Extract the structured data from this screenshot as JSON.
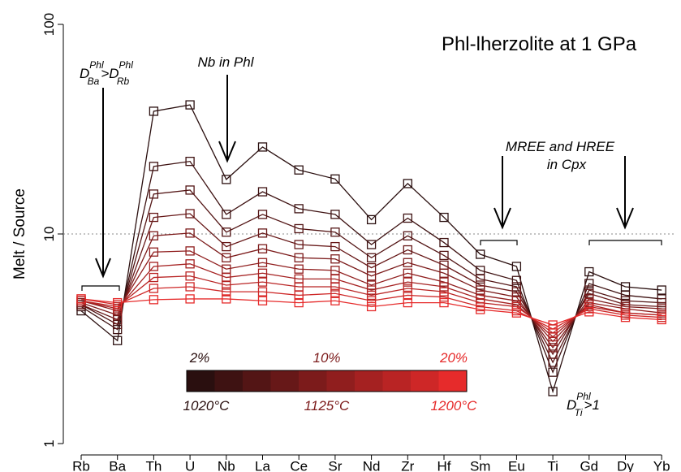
{
  "chart_data": {
    "type": "line",
    "title": "Phl-lherzolite at 1 GPa",
    "y_label": "Melt / Source",
    "categories": [
      "Rb",
      "Ba",
      "Th",
      "U",
      "Nb",
      "La",
      "Ce",
      "Sr",
      "Nd",
      "Zr",
      "Hf",
      "Sm",
      "Eu",
      "Ti",
      "Gd",
      "Dy",
      "Yb"
    ],
    "log_y": true,
    "ylim": [
      1,
      100
    ],
    "yticks": [
      1,
      10,
      100
    ],
    "hline": 10,
    "marker": "square",
    "series": [
      {
        "color": "#2a0f0f",
        "values": [
          4.3,
          3.1,
          38.5,
          41.3,
          18.2,
          26.0,
          20.2,
          18.3,
          11.7,
          17.4,
          12.0,
          8.0,
          7.0,
          1.77,
          6.6,
          5.6,
          5.4
        ]
      },
      {
        "color": "#3e1212",
        "values": [
          4.5,
          3.5,
          21,
          22.2,
          12.4,
          15.9,
          13.2,
          12.4,
          8.9,
          11.9,
          9.1,
          6.7,
          6.0,
          2.19,
          5.8,
          5.1,
          4.9
        ]
      },
      {
        "color": "#531515",
        "values": [
          4.6,
          3.7,
          15.5,
          16.2,
          10.2,
          12.4,
          10.6,
          10.2,
          7.7,
          9.8,
          7.9,
          6.1,
          5.6,
          2.44,
          5.4,
          4.8,
          4.7
        ]
      },
      {
        "color": "#671818",
        "values": [
          4.6,
          3.9,
          12,
          12.5,
          8.7,
          10.1,
          8.9,
          8.7,
          6.9,
          8.4,
          7.1,
          5.7,
          5.3,
          2.67,
          5.2,
          4.6,
          4.5
        ]
      },
      {
        "color": "#7c1b1b",
        "values": [
          4.7,
          4.1,
          9.8,
          10.1,
          7.7,
          8.5,
          7.7,
          7.6,
          6.3,
          7.3,
          6.5,
          5.4,
          5.0,
          2.87,
          4.9,
          4.5,
          4.4
        ]
      },
      {
        "color": "#901e1e",
        "values": [
          4.8,
          4.3,
          8.2,
          8.3,
          6.8,
          7.3,
          6.8,
          6.7,
          5.7,
          6.5,
          5.9,
          5.1,
          4.8,
          3.07,
          4.7,
          4.4,
          4.2
        ]
      },
      {
        "color": "#a52121",
        "values": [
          4.8,
          4.4,
          7.0,
          7.2,
          6.2,
          6.5,
          6.1,
          6.1,
          5.4,
          5.9,
          5.6,
          4.9,
          4.6,
          3.23,
          4.6,
          4.2,
          4.1
        ]
      },
      {
        "color": "#b92424",
        "values": [
          4.8,
          4.5,
          6.2,
          6.3,
          5.7,
          5.9,
          5.6,
          5.6,
          5.1,
          5.5,
          5.3,
          4.7,
          4.5,
          3.37,
          4.5,
          4.2,
          4.1
        ]
      },
      {
        "color": "#ce2727",
        "values": [
          4.9,
          4.6,
          5.5,
          5.6,
          5.3,
          5.3,
          5.1,
          5.2,
          4.8,
          5.1,
          5.0,
          4.5,
          4.3,
          3.52,
          4.4,
          4.1,
          4.0
        ]
      },
      {
        "color": "#e62b2b",
        "values": [
          4.9,
          4.7,
          4.86,
          4.9,
          4.9,
          4.8,
          4.7,
          4.8,
          4.5,
          4.7,
          4.7,
          4.36,
          4.2,
          3.68,
          4.25,
          4.0,
          3.9
        ]
      }
    ],
    "colorbar": {
      "top_labels": [
        "2%",
        "10%",
        "20%"
      ],
      "bottom_labels": [
        "1020°C",
        "1125°C",
        "1200°C"
      ]
    },
    "annotations": {
      "ba_rb": [
        "D",
        "Phl",
        "Ba",
        ">",
        "D",
        "Phl",
        "Rb"
      ],
      "nb": "Nb in Phl",
      "ree": [
        "MREE and HREE",
        "in Cpx"
      ],
      "ti": [
        "D",
        "Phl",
        "Ti",
        ">1"
      ]
    }
  }
}
